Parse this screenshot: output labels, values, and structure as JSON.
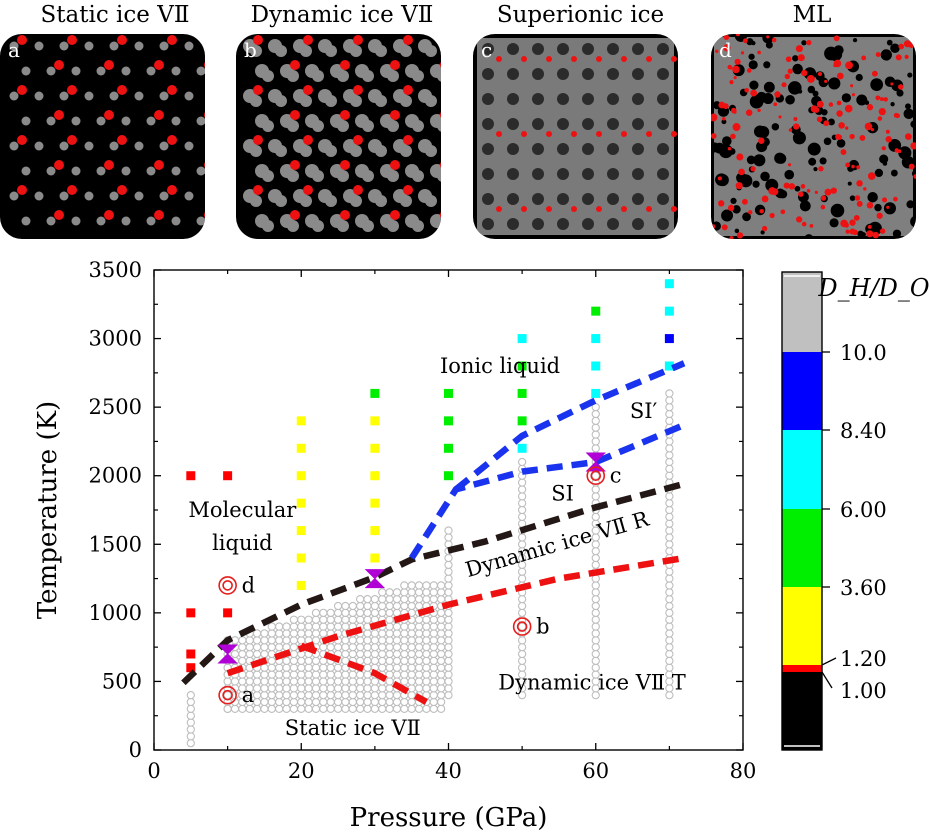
{
  "panels": [
    {
      "title": "Static ice VⅡ",
      "letter": "a",
      "style": "static"
    },
    {
      "title": "Dynamic ice VⅡ",
      "letter": "b",
      "style": "dynamic"
    },
    {
      "title": "Superionic ice",
      "letter": "c",
      "style": "superionic"
    },
    {
      "title": "ML",
      "letter": "d",
      "style": "ml"
    }
  ],
  "chart_data": {
    "type": "scatter",
    "title": "",
    "xlabel": "Pressure (GPa)",
    "ylabel": "Temperature (K)",
    "xlim": [
      0,
      80
    ],
    "ylim": [
      0,
      3500
    ],
    "xticks": [
      0,
      20,
      40,
      60,
      80
    ],
    "yticks": [
      0,
      500,
      1000,
      1500,
      2000,
      2500,
      3000,
      3500
    ],
    "colorbar": {
      "title": "D_H/D_O",
      "tick_labels": [
        "10.0",
        "8.40",
        "6.00",
        "3.60",
        "1.20",
        "1.00"
      ],
      "bands": [
        {
          "color": "#c0c0c0"
        },
        {
          "color": "#0000ff"
        },
        {
          "color": "#00ffff"
        },
        {
          "color": "#00ee00"
        },
        {
          "color": "#ffff00"
        },
        {
          "color": "#ff0000"
        },
        {
          "color": "#000000"
        }
      ]
    },
    "square_points": [
      {
        "x": 5,
        "y": 2000,
        "color": "#ff0000"
      },
      {
        "x": 10,
        "y": 2000,
        "color": "#ff0000"
      },
      {
        "x": 5,
        "y": 1000,
        "color": "#ff0000"
      },
      {
        "x": 10,
        "y": 1000,
        "color": "#ff0000"
      },
      {
        "x": 5,
        "y": 700,
        "color": "#ff0000"
      },
      {
        "x": 5,
        "y": 600,
        "color": "#ff0000"
      },
      {
        "x": 20,
        "y": 2400,
        "color": "#ffff00"
      },
      {
        "x": 20,
        "y": 2200,
        "color": "#ffff00"
      },
      {
        "x": 20,
        "y": 2000,
        "color": "#ffff00"
      },
      {
        "x": 20,
        "y": 1800,
        "color": "#ffff00"
      },
      {
        "x": 20,
        "y": 1600,
        "color": "#ffff00"
      },
      {
        "x": 20,
        "y": 1400,
        "color": "#ffff00"
      },
      {
        "x": 20,
        "y": 1200,
        "color": "#ffff00"
      },
      {
        "x": 30,
        "y": 2600,
        "color": "#00ee00"
      },
      {
        "x": 30,
        "y": 2400,
        "color": "#ffff00"
      },
      {
        "x": 30,
        "y": 2200,
        "color": "#ffff00"
      },
      {
        "x": 30,
        "y": 2000,
        "color": "#ffff00"
      },
      {
        "x": 30,
        "y": 1800,
        "color": "#ffff00"
      },
      {
        "x": 30,
        "y": 1600,
        "color": "#ffff00"
      },
      {
        "x": 30,
        "y": 1400,
        "color": "#ffff00"
      },
      {
        "x": 40,
        "y": 2600,
        "color": "#00ee00"
      },
      {
        "x": 40,
        "y": 2400,
        "color": "#00ee00"
      },
      {
        "x": 40,
        "y": 2200,
        "color": "#00ee00"
      },
      {
        "x": 40,
        "y": 2000,
        "color": "#00ee00"
      },
      {
        "x": 50,
        "y": 3000,
        "color": "#00ffff"
      },
      {
        "x": 50,
        "y": 2800,
        "color": "#00ee00"
      },
      {
        "x": 50,
        "y": 2600,
        "color": "#00ee00"
      },
      {
        "x": 50,
        "y": 2400,
        "color": "#00ee00"
      },
      {
        "x": 50,
        "y": 2200,
        "color": "#00ffff"
      },
      {
        "x": 60,
        "y": 3200,
        "color": "#00ee00"
      },
      {
        "x": 60,
        "y": 3000,
        "color": "#00ffff"
      },
      {
        "x": 60,
        "y": 2800,
        "color": "#00ffff"
      },
      {
        "x": 60,
        "y": 2600,
        "color": "#00ffff"
      },
      {
        "x": 70,
        "y": 3400,
        "color": "#00ffff"
      },
      {
        "x": 70,
        "y": 3200,
        "color": "#00ffff"
      },
      {
        "x": 70,
        "y": 3000,
        "color": "#0000ff"
      },
      {
        "x": 70,
        "y": 2800,
        "color": "#00ffff"
      }
    ],
    "gray_columns": [
      {
        "x": 10,
        "y_min": 300,
        "y_max": 300
      },
      {
        "x": 40,
        "y_min": 400,
        "y_max": 1600
      },
      {
        "x": 50,
        "y_min": 400,
        "y_max": 2100
      },
      {
        "x": 60,
        "y_min": 400,
        "y_max": 2500
      },
      {
        "x": 70,
        "y_min": 400,
        "y_max": 2600
      },
      {
        "x": 5,
        "y_min": 50,
        "y_max": 400
      }
    ],
    "gray_region": {
      "p_min": 10,
      "p_max": 39,
      "t_min": 300,
      "t_max": 1300
    },
    "boundaries": [
      {
        "name": "melting",
        "color": "#231815",
        "points": [
          [
            4,
            490
          ],
          [
            10,
            800
          ],
          [
            20,
            1060
          ],
          [
            30,
            1260
          ],
          [
            35,
            1390
          ],
          [
            45,
            1520
          ],
          [
            60,
            1770
          ],
          [
            72,
            1940
          ]
        ]
      },
      {
        "name": "rotation",
        "color": "#ee1111",
        "points": [
          [
            10,
            560
          ],
          [
            25,
            830
          ],
          [
            40,
            1060
          ],
          [
            55,
            1250
          ],
          [
            72,
            1400
          ]
        ]
      },
      {
        "name": "static-upper",
        "color": "#ee1111",
        "points": [
          [
            20,
            760
          ],
          [
            30,
            560
          ],
          [
            37,
            350
          ]
        ]
      },
      {
        "name": "SI-lower",
        "color": "#1a33ee",
        "points": [
          [
            35,
            1400
          ],
          [
            41,
            1900
          ],
          [
            50,
            2030
          ],
          [
            60,
            2100
          ],
          [
            72,
            2370
          ]
        ]
      },
      {
        "name": "SI-upper",
        "color": "#1a33ee",
        "points": [
          [
            41,
            1900
          ],
          [
            50,
            2290
          ],
          [
            60,
            2550
          ],
          [
            72,
            2820
          ]
        ]
      }
    ],
    "triple_points": [
      {
        "x": 10,
        "y": 700
      },
      {
        "x": 30,
        "y": 1250
      },
      {
        "x": 60,
        "y": 2100
      }
    ],
    "markers": [
      {
        "x": 10,
        "y": 400,
        "label": "a"
      },
      {
        "x": 50,
        "y": 900,
        "label": "b"
      },
      {
        "x": 60,
        "y": 2000,
        "label": "c"
      },
      {
        "x": 10,
        "y": 1200,
        "label": "d"
      }
    ],
    "annotations": [
      {
        "text": "Ionic liquid",
        "x": 47,
        "y": 2750,
        "rotate": 0
      },
      {
        "text": "Molecular",
        "x": 12,
        "y": 1700,
        "rotate": 0
      },
      {
        "text": "liquid",
        "x": 12,
        "y": 1460,
        "rotate": 0
      },
      {
        "text": "SI′",
        "x": 66.5,
        "y": 2420,
        "rotate": 0
      },
      {
        "text": "SI",
        "x": 55.5,
        "y": 1820,
        "rotate": 0
      },
      {
        "text": "Dynamic ice VⅡ  R",
        "x": 55,
        "y": 1450,
        "rotate": -16
      },
      {
        "text": "Dynamic ice VⅡ  T",
        "x": 59.5,
        "y": 440,
        "rotate": 0
      },
      {
        "text": "Static ice VⅡ",
        "x": 27,
        "y": 110,
        "rotate": 0
      }
    ]
  }
}
